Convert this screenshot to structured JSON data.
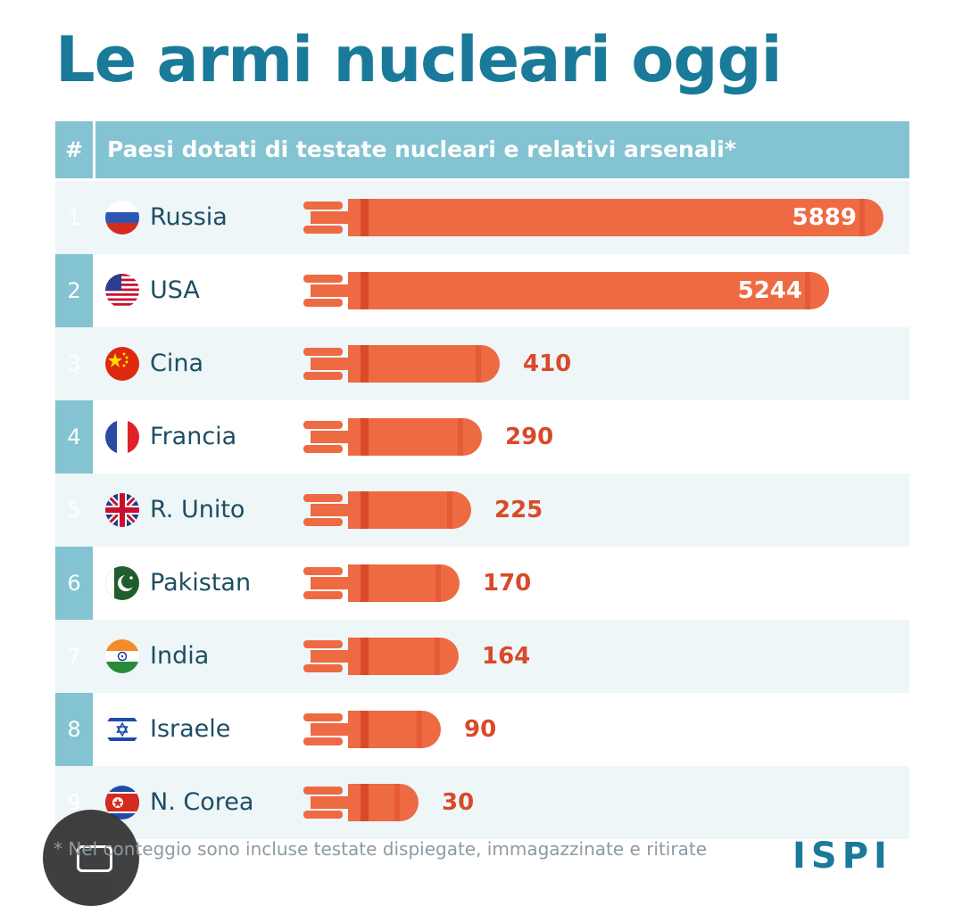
{
  "title": "Le armi nucleari oggi",
  "header": {
    "rank_symbol": "#",
    "subtitle": "Paesi dotati di testate nucleari e relativi arsenali*"
  },
  "colors": {
    "title": "#1a7a99",
    "header_bg": "#84c3d1",
    "bar": "#ee6a43",
    "bar_dark": "#d9492a",
    "value_text": "#d9492a"
  },
  "chart_data": {
    "type": "bar",
    "orientation": "horizontal",
    "title": "Le armi nucleari oggi",
    "subtitle": "Paesi dotati di testate nucleari e relativi arsenali*",
    "categories": [
      "Russia",
      "USA",
      "Cina",
      "Francia",
      "R. Unito",
      "Pakistan",
      "India",
      "Israele",
      "N. Corea"
    ],
    "ranks": [
      "1",
      "2",
      "3",
      "4",
      "5",
      "6",
      "7",
      "8",
      "9"
    ],
    "values": [
      5889,
      5244,
      410,
      290,
      225,
      170,
      164,
      90,
      30
    ],
    "value_labels": [
      "5889",
      "5244",
      "410",
      "290",
      "225",
      "170",
      "164",
      "90",
      "30"
    ],
    "flags": [
      "russia-flag",
      "usa-flag",
      "china-flag",
      "france-flag",
      "uk-flag",
      "pakistan-flag",
      "india-flag",
      "israel-flag",
      "north-korea-flag"
    ]
  },
  "footnote": "* Nel conteggio sono incluse testate dispiegate, immagazzinate e ritirate",
  "logo": "ISPI"
}
